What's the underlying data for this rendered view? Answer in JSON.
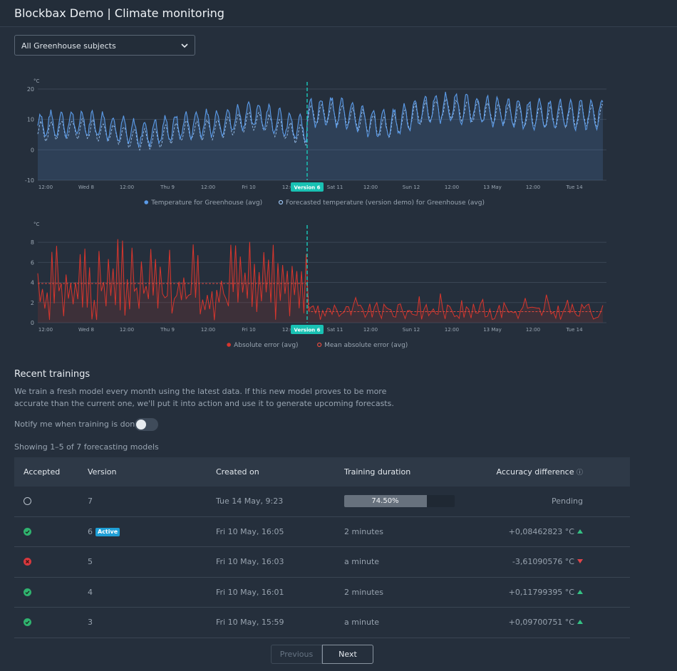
{
  "header": {
    "title": "Blockbax Demo | Climate monitoring",
    "chevron_icon": "chevron-down-icon"
  },
  "filter": {
    "selected": "All Greenhouse subjects"
  },
  "x_tick_labels": [
    "12:00",
    "Wed 8",
    "12:00",
    "Thu 9",
    "12:00",
    "Fri 10",
    "12:00",
    "Sat 11",
    "12:00",
    "Sun 12",
    "12:00",
    "13 May",
    "12:00",
    "Tue 14"
  ],
  "version_marker": {
    "label": "Version 6",
    "color": "#19c1b3"
  },
  "chart_data": [
    {
      "type": "line",
      "ylabel": "°C",
      "ylim": [
        -10,
        20
      ],
      "yticks": [
        20,
        10,
        0,
        -10
      ],
      "grid": true,
      "legend_position": "bottom-center",
      "series": [
        {
          "name": "Temperature for Greenhouse (avg)",
          "style": "solid",
          "color": "#5b9be8",
          "mean_before_version": 8,
          "daily_amplitude": 4,
          "mean_after_version": 13
        },
        {
          "name": "Forecasted temperature (version demo) for Greenhouse (avg)",
          "style": "dashed",
          "color": "#9cc4f2",
          "mean_before_version": 6,
          "daily_amplitude": 3,
          "mean_after_version": 12.5
        }
      ]
    },
    {
      "type": "line",
      "ylabel": "°C",
      "ylim": [
        0,
        9
      ],
      "yticks": [
        8,
        6,
        4,
        2,
        0
      ],
      "grid": true,
      "legend_position": "bottom-center",
      "series": [
        {
          "name": "Absolute error (avg)",
          "style": "solid",
          "color": "#d7362d",
          "mean_before_version": 3.9,
          "mean_after_version": 1.1
        },
        {
          "name": "Mean absolute error (avg)",
          "style": "dashed",
          "color": "#e04a3f",
          "value_before_version": 3.9,
          "value_after_version": 1.1
        }
      ]
    }
  ],
  "recent": {
    "title": "Recent trainings",
    "description": "We train a fresh model every month using the latest data. If this new model proves to be more accurate than the current one, we'll put it into action and use it to generate upcoming forecasts.",
    "notify_label": "Notify me when training is done",
    "notify_on": false,
    "showing": "Showing 1–5 of 7 forecasting models"
  },
  "table": {
    "headers": {
      "accepted": "Accepted",
      "version": "Version",
      "created": "Created on",
      "duration": "Training duration",
      "accuracy": "Accuracy difference"
    },
    "info_icon": "info-icon",
    "rows": [
      {
        "status": "pending",
        "version": "7",
        "badge": "",
        "created": "Tue 14 May, 9:23",
        "duration": "",
        "progress": 0.745,
        "progress_label": "74.50%",
        "accuracy": "Pending",
        "trend": ""
      },
      {
        "status": "accepted",
        "version": "6",
        "badge": "Active",
        "created": "Fri 10 May, 16:05",
        "duration": "2 minutes",
        "progress": null,
        "progress_label": "",
        "accuracy": "+0,08462823 °C",
        "trend": "up"
      },
      {
        "status": "rejected",
        "version": "5",
        "badge": "",
        "created": "Fri 10 May, 16:03",
        "duration": "a minute",
        "progress": null,
        "progress_label": "",
        "accuracy": "-3,61090576 °C",
        "trend": "down"
      },
      {
        "status": "accepted",
        "version": "4",
        "badge": "",
        "created": "Fri 10 May, 16:01",
        "duration": "2 minutes",
        "progress": null,
        "progress_label": "",
        "accuracy": "+0,11799395 °C",
        "trend": "up"
      },
      {
        "status": "accepted",
        "version": "3",
        "badge": "",
        "created": "Fri 10 May, 15:59",
        "duration": "a minute",
        "progress": null,
        "progress_label": "",
        "accuracy": "+0,09700751 °C",
        "trend": "up"
      }
    ]
  },
  "pagination": {
    "previous": "Previous",
    "next": "Next",
    "previous_enabled": false
  }
}
